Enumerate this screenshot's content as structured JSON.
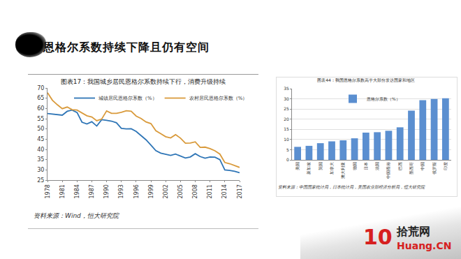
{
  "page": {
    "title": "恩格尔系数持续下降且仍有空间",
    "watermark": [
      "10",
      "拾荒网",
      "Huang.CN"
    ]
  },
  "chart_data": [
    {
      "type": "line",
      "title": "图表17：我国城乡居民恩格尔系数持续下行，消费升级持续",
      "x": [
        1978,
        1979,
        1980,
        1981,
        1982,
        1983,
        1984,
        1985,
        1986,
        1987,
        1988,
        1989,
        1990,
        1991,
        1992,
        1993,
        1994,
        1995,
        1996,
        1997,
        1998,
        1999,
        2000,
        2001,
        2002,
        2003,
        2004,
        2005,
        2006,
        2007,
        2008,
        2009,
        2010,
        2011,
        2012,
        2013,
        2014,
        2015,
        2016,
        2017
      ],
      "series": [
        {
          "name": "城镇居民恩格尔系数（%）",
          "color": "#2e75b6",
          "values": [
            57.5,
            57.2,
            56.9,
            56.7,
            58.6,
            59.2,
            58.0,
            53.3,
            52.4,
            53.5,
            51.4,
            54.5,
            54.2,
            53.8,
            53.0,
            50.3,
            50.0,
            50.1,
            48.8,
            46.6,
            44.7,
            42.1,
            39.4,
            38.2,
            37.7,
            37.1,
            37.7,
            36.7,
            35.8,
            36.3,
            37.9,
            36.5,
            35.7,
            36.3,
            36.2,
            35.0,
            30.0,
            29.7,
            29.3,
            28.6
          ]
        },
        {
          "name": "农村居民恩格尔系数（%）",
          "color": "#d99a3b",
          "values": [
            67.7,
            64.0,
            61.8,
            59.9,
            60.7,
            59.4,
            59.2,
            57.8,
            56.4,
            55.8,
            54.0,
            54.8,
            58.8,
            57.6,
            57.6,
            58.1,
            58.9,
            58.6,
            56.3,
            55.1,
            53.4,
            52.6,
            49.1,
            47.7,
            46.2,
            45.6,
            47.2,
            45.5,
            43.0,
            43.1,
            43.7,
            41.0,
            41.1,
            40.4,
            39.3,
            37.7,
            33.6,
            33.0,
            32.2,
            31.2
          ]
        }
      ],
      "xlim": [
        1978,
        2017
      ],
      "xticks": [
        1978,
        1981,
        1984,
        1987,
        1990,
        1993,
        1996,
        1999,
        2002,
        2005,
        2008,
        2011,
        2014,
        2017
      ],
      "ylim": [
        25,
        70
      ],
      "yticks": [
        25,
        30,
        35,
        40,
        45,
        50,
        55,
        60,
        65,
        70
      ],
      "grid": false,
      "legend": "top",
      "source": "资料来源：Wind，恒大研究院"
    },
    {
      "type": "bar",
      "title": "图表44：我国恩格尔系数高于大部分发达国家和地区",
      "categories": [
        "美国",
        "新加坡",
        "英国",
        "加拿大",
        "澳大利亚",
        "德国",
        "日本",
        "法国",
        "中国香港",
        "巴西",
        "墨西哥",
        "中国",
        "俄罗斯",
        "印度"
      ],
      "series": [
        {
          "name": "恩格尔系数（%）",
          "color": "#5b8fd0",
          "values": [
            6.4,
            6.9,
            8.2,
            9.1,
            9.6,
            10.6,
            13.4,
            13.6,
            14.3,
            16.0,
            24.2,
            29.3,
            29.9,
            30.3
          ]
        }
      ],
      "ylim": [
        0,
        35
      ],
      "yticks": [
        0,
        5,
        10,
        15,
        20,
        25,
        30,
        35
      ],
      "grid": true,
      "legend": "top",
      "source": "资料来源：中国国家统计局，日本统计局，美国农业部经济分析局，恒大研究院"
    }
  ]
}
